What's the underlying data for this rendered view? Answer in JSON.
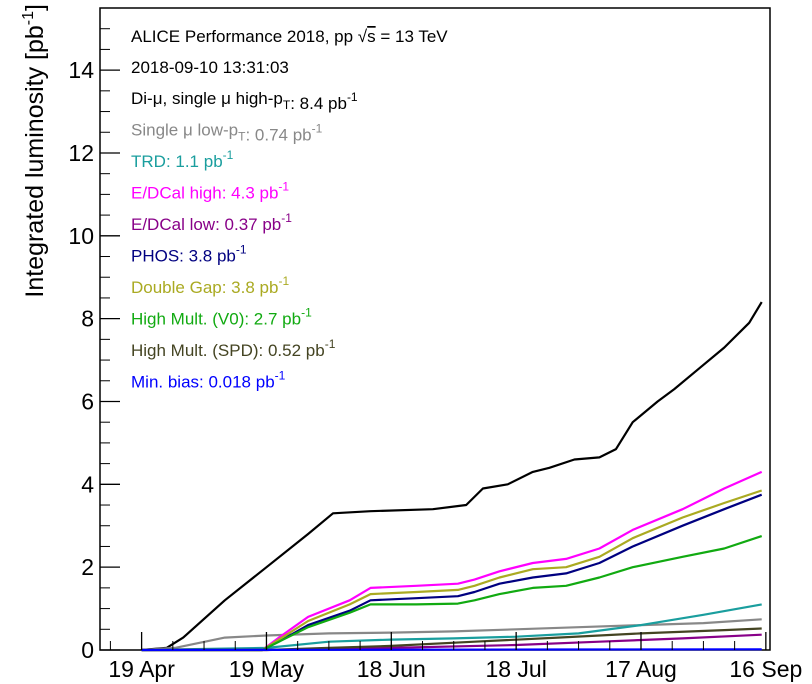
{
  "chart_data": {
    "type": "line",
    "title": "",
    "xlabel": "",
    "ylabel": "Integrated luminosity [pb",
    "ylabel_sup": "-1",
    "ylabel_close": "]",
    "ylim": [
      0,
      15.5
    ],
    "xlim": [
      -10,
      151
    ],
    "y_ticks": [
      0,
      2,
      4,
      6,
      8,
      10,
      12,
      14
    ],
    "y_tick_labels": [
      "0",
      "2",
      "4",
      "6",
      "8",
      "10",
      "12",
      "14"
    ],
    "x_ticks": [
      0,
      30,
      60,
      90,
      120,
      150
    ],
    "x_tick_labels": [
      "19 Apr",
      "19 May",
      "18 Jun",
      "18 Jul",
      "17 Aug",
      "16 Sep"
    ],
    "grid": false,
    "legend_placement": "top-left",
    "header": {
      "title_prefix": "ALICE Performance 2018, pp ",
      "sqrt_symbol": "√",
      "sqrt_arg": "s",
      "title_suffix": " = 13 TeV",
      "timestamp": "2018-09-10 13:31:03"
    },
    "series": [
      {
        "name_html": [
          "Di-μ, single μ high-p",
          {
            "sub": "T"
          },
          ": 8.4 pb",
          {
            "sup": "-1"
          }
        ],
        "color": "#000000",
        "points": [
          [
            0,
            0
          ],
          [
            6,
            0.05
          ],
          [
            10,
            0.3
          ],
          [
            20,
            1.2
          ],
          [
            30,
            2.0
          ],
          [
            40,
            2.8
          ],
          [
            46,
            3.3
          ],
          [
            55,
            3.35
          ],
          [
            70,
            3.4
          ],
          [
            78,
            3.5
          ],
          [
            82,
            3.9
          ],
          [
            88,
            4.0
          ],
          [
            94,
            4.3
          ],
          [
            98,
            4.4
          ],
          [
            104,
            4.6
          ],
          [
            110,
            4.65
          ],
          [
            114,
            4.85
          ],
          [
            118,
            5.5
          ],
          [
            124,
            6.0
          ],
          [
            128,
            6.3
          ],
          [
            134,
            6.8
          ],
          [
            140,
            7.3
          ],
          [
            146,
            7.9
          ],
          [
            149,
            8.4
          ]
        ]
      },
      {
        "name_html": [
          "Single μ low-p",
          {
            "sub": "T"
          },
          ": 0.74 pb",
          {
            "sup": "-1"
          }
        ],
        "color": "#888888",
        "points": [
          [
            0,
            0
          ],
          [
            8,
            0.05
          ],
          [
            20,
            0.3
          ],
          [
            30,
            0.35
          ],
          [
            45,
            0.4
          ],
          [
            60,
            0.42
          ],
          [
            75,
            0.45
          ],
          [
            90,
            0.5
          ],
          [
            105,
            0.55
          ],
          [
            120,
            0.6
          ],
          [
            135,
            0.65
          ],
          [
            149,
            0.74
          ]
        ]
      },
      {
        "name_html": [
          "TRD: 1.1 pb",
          {
            "sup": "-1"
          }
        ],
        "color": "#1a9e9e",
        "points": [
          [
            0,
            0
          ],
          [
            30,
            0.05
          ],
          [
            45,
            0.2
          ],
          [
            60,
            0.25
          ],
          [
            75,
            0.28
          ],
          [
            90,
            0.32
          ],
          [
            105,
            0.4
          ],
          [
            120,
            0.6
          ],
          [
            135,
            0.85
          ],
          [
            149,
            1.1
          ]
        ]
      },
      {
        "name_html": [
          "E/DCal high: 4.3 pb",
          {
            "sup": "-1"
          }
        ],
        "color": "#ff00ff",
        "points": [
          [
            0,
            0
          ],
          [
            29,
            0
          ],
          [
            33,
            0.3
          ],
          [
            40,
            0.8
          ],
          [
            50,
            1.2
          ],
          [
            55,
            1.5
          ],
          [
            66,
            1.55
          ],
          [
            76,
            1.6
          ],
          [
            80,
            1.7
          ],
          [
            86,
            1.9
          ],
          [
            94,
            2.1
          ],
          [
            102,
            2.2
          ],
          [
            110,
            2.45
          ],
          [
            118,
            2.9
          ],
          [
            130,
            3.4
          ],
          [
            140,
            3.9
          ],
          [
            149,
            4.3
          ]
        ]
      },
      {
        "name_html": [
          "E/DCal low: 0.37 pb",
          {
            "sup": "-1"
          }
        ],
        "color": "#880088",
        "points": [
          [
            0,
            0
          ],
          [
            30,
            0
          ],
          [
            40,
            0.02
          ],
          [
            60,
            0.05
          ],
          [
            90,
            0.12
          ],
          [
            110,
            0.2
          ],
          [
            130,
            0.28
          ],
          [
            149,
            0.37
          ]
        ]
      },
      {
        "name_html": [
          "PHOS: 3.8 pb",
          {
            "sup": "-1"
          }
        ],
        "color": "#000080",
        "points": [
          [
            0,
            0
          ],
          [
            29,
            0
          ],
          [
            33,
            0.2
          ],
          [
            40,
            0.6
          ],
          [
            50,
            0.95
          ],
          [
            55,
            1.2
          ],
          [
            66,
            1.25
          ],
          [
            76,
            1.3
          ],
          [
            80,
            1.4
          ],
          [
            86,
            1.6
          ],
          [
            94,
            1.75
          ],
          [
            102,
            1.85
          ],
          [
            110,
            2.1
          ],
          [
            118,
            2.5
          ],
          [
            130,
            3.0
          ],
          [
            140,
            3.4
          ],
          [
            149,
            3.75
          ]
        ]
      },
      {
        "name_html": [
          "Double Gap: 3.8 pb",
          {
            "sup": "-1"
          }
        ],
        "color": "#aaaa22",
        "points": [
          [
            0,
            0
          ],
          [
            29,
            0
          ],
          [
            33,
            0.25
          ],
          [
            40,
            0.7
          ],
          [
            50,
            1.1
          ],
          [
            55,
            1.35
          ],
          [
            66,
            1.4
          ],
          [
            76,
            1.45
          ],
          [
            80,
            1.55
          ],
          [
            86,
            1.75
          ],
          [
            94,
            1.95
          ],
          [
            102,
            2.0
          ],
          [
            110,
            2.25
          ],
          [
            118,
            2.7
          ],
          [
            130,
            3.2
          ],
          [
            140,
            3.55
          ],
          [
            149,
            3.85
          ]
        ]
      },
      {
        "name_html": [
          "High Mult. (V0): 2.7 pb",
          {
            "sup": "-1"
          }
        ],
        "color": "#11aa11",
        "points": [
          [
            0,
            0
          ],
          [
            29,
            0
          ],
          [
            33,
            0.2
          ],
          [
            40,
            0.55
          ],
          [
            50,
            0.9
          ],
          [
            55,
            1.1
          ],
          [
            66,
            1.1
          ],
          [
            76,
            1.12
          ],
          [
            80,
            1.2
          ],
          [
            86,
            1.35
          ],
          [
            94,
            1.5
          ],
          [
            102,
            1.55
          ],
          [
            110,
            1.75
          ],
          [
            118,
            2.0
          ],
          [
            130,
            2.25
          ],
          [
            140,
            2.45
          ],
          [
            149,
            2.75
          ]
        ]
      },
      {
        "name_html": [
          "High Mult. (SPD): 0.52 pb",
          {
            "sup": "-1"
          }
        ],
        "color": "#444422",
        "points": [
          [
            0,
            0
          ],
          [
            30,
            0
          ],
          [
            45,
            0.05
          ],
          [
            60,
            0.1
          ],
          [
            80,
            0.2
          ],
          [
            100,
            0.3
          ],
          [
            120,
            0.4
          ],
          [
            140,
            0.48
          ],
          [
            149,
            0.52
          ]
        ]
      },
      {
        "name_html": [
          "Min. bias: 0.018 pb",
          {
            "sup": "-1"
          }
        ],
        "color": "#0000ff",
        "points": [
          [
            0,
            0
          ],
          [
            50,
            0.005
          ],
          [
            100,
            0.012
          ],
          [
            149,
            0.018
          ]
        ]
      }
    ]
  }
}
